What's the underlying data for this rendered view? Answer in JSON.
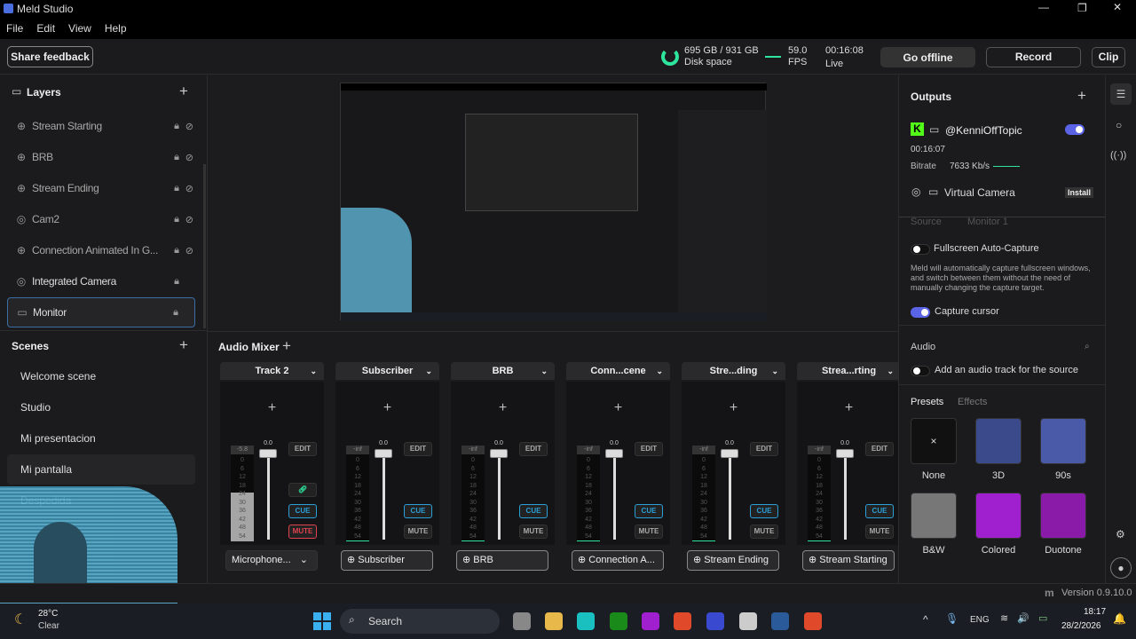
{
  "window": {
    "title": "Meld Studio"
  },
  "menu": [
    "File",
    "Edit",
    "View",
    "Help"
  ],
  "toolbar": {
    "feedback": "Share feedback",
    "disk": "695 GB / 931 GB",
    "disk_label": "Disk space",
    "disk_used_fraction": 0.75,
    "fps": "59.0",
    "fps_label": "FPS",
    "time": "00:16:08",
    "time_label": "Live",
    "go_offline": "Go offline",
    "record": "Record",
    "clip": "Clip"
  },
  "layers": {
    "title": "Layers",
    "items": [
      {
        "label": "Stream Starting",
        "icon": "globe-icon",
        "hidden": true
      },
      {
        "label": "BRB",
        "icon": "globe-icon",
        "hidden": true
      },
      {
        "label": "Stream Ending",
        "icon": "globe-icon",
        "hidden": true
      },
      {
        "label": "Cam2",
        "icon": "camera-icon",
        "hidden": true
      },
      {
        "label": "Connection Animated In G...",
        "icon": "globe-icon",
        "hidden": true
      },
      {
        "label": "Integrated Camera",
        "icon": "camera-icon",
        "hidden": false
      },
      {
        "label": "Monitor",
        "icon": "monitor-icon",
        "hidden": false,
        "selected": true
      }
    ]
  },
  "scenes": {
    "title": "Scenes",
    "items": [
      "Welcome scene",
      "Studio",
      "Mi presentacion",
      "Mi pantalla",
      "Despedida"
    ],
    "active": 3
  },
  "mixer": {
    "title": "Audio Mixer",
    "edit": "EDIT",
    "cue": "CUE",
    "mute": "MUTE",
    "ticks": [
      "0",
      "6",
      "12",
      "18",
      "24",
      "30",
      "36",
      "42",
      "48",
      "54"
    ],
    "tracks": [
      {
        "name": "Track 2",
        "level": "-5.8",
        "fader": "0.0",
        "source": "Microphone...",
        "muted": true,
        "dropdown": true
      },
      {
        "name": "Subscriber",
        "level": "-inf",
        "fader": "0.0",
        "source": "Subscriber"
      },
      {
        "name": "BRB",
        "level": "-inf",
        "fader": "0.0",
        "source": "BRB"
      },
      {
        "name": "Conn...cene",
        "level": "-inf",
        "fader": "0.0",
        "source": "Connection A..."
      },
      {
        "name": "Stre...ding",
        "level": "-inf",
        "fader": "0.0",
        "source": "Stream Ending"
      },
      {
        "name": "Strea...rting",
        "level": "-inf",
        "fader": "0.0",
        "source": "Stream Starting"
      }
    ]
  },
  "outputs": {
    "title": "Outputs",
    "channel": "@KenniOffTopic",
    "enabled": true,
    "elapsed": "00:16:07",
    "bitrate_label": "Bitrate",
    "bitrate": "7633 Kb/s",
    "virtual_camera": "Virtual Camera",
    "install": "Install"
  },
  "props": {
    "source_label": "Source",
    "source_value": "Monitor 1",
    "fullscreen": "Fullscreen Auto-Capture",
    "fullscreen_desc": "Meld will automatically capture fullscreen windows, and switch between them without the need of manually changing the capture target.",
    "capture_cursor": "Capture cursor",
    "audio_title": "Audio",
    "audio_track": "Add an audio track for the source",
    "tab_presets": "Presets",
    "tab_effects": "Effects",
    "presets": [
      {
        "label": "None",
        "color": "#111"
      },
      {
        "label": "3D",
        "color": "#3b4a8a"
      },
      {
        "label": "90s",
        "color": "#4a5aa8"
      },
      {
        "label": "B&W",
        "color": "#777"
      },
      {
        "label": "Colored",
        "color": "#a020d0"
      },
      {
        "label": "Duotone",
        "color": "#8a1aa8"
      }
    ]
  },
  "status": {
    "version": "Version 0.9.10.0"
  },
  "taskbar": {
    "weather_temp": "28°C",
    "weather_desc": "Clear",
    "search": "Search",
    "lang": "ENG",
    "time": "18:17",
    "date": "28/2/2026"
  },
  "colors": {
    "accent": "#5b63e6",
    "live": "#2ee59d",
    "mute": "#e0424f",
    "cue": "#2a9fd8"
  }
}
